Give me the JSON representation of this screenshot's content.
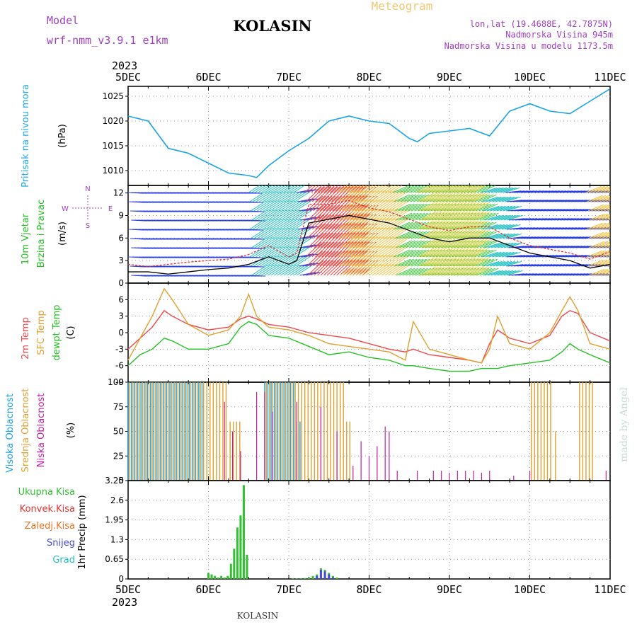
{
  "header": {
    "model_label": "Model",
    "model_name": "wrf-nmm_v3.9.1 e1km",
    "station": "KOLASIN",
    "product": "Meteogram",
    "lonlat": "lon,lat (19.4688E, 42.7875N)",
    "altitude": "Nadmorska Visina 945m",
    "model_altitude": "Nadmorska Visina u modelu 1173.5m",
    "year_top": "2023",
    "year_bottom": "2023",
    "footer_station": "KOLASIN",
    "credit": "made by Angel"
  },
  "colors": {
    "pressure": "#1aa3e8",
    "wind_speed": "#000000",
    "wind_gust": "#e03030",
    "temp_2m": "#f04848",
    "temp_sfc": "#e0a030",
    "dewpoint": "#22c022",
    "high_cloud": "#1a9fe0",
    "mid_cloud": "#e0a030",
    "low_cloud": "#c020a0",
    "rain_total": "#30c030",
    "rain_conv": "#e83030",
    "freezing": "#f07020",
    "snow": "#4848e0",
    "hail": "#20c0c0"
  },
  "chart_data": [
    {
      "type": "line",
      "panel": "pressure",
      "ylabel": [
        "Pritisak na nivou mora",
        "(hPa)"
      ],
      "unit": "hPa",
      "ylim": [
        1007,
        1027
      ],
      "yticks": [
        1010,
        1015,
        1020,
        1025
      ],
      "x_days": [
        0,
        0.25,
        0.5,
        0.75,
        1,
        1.25,
        1.5,
        1.6,
        1.75,
        2,
        2.25,
        2.5,
        2.75,
        3,
        3.25,
        3.5,
        3.6,
        3.75,
        4,
        4.25,
        4.5,
        4.75,
        5,
        5.25,
        5.5,
        5.75,
        6
      ],
      "values": [
        1021,
        1020,
        1014.5,
        1013.5,
        1011.5,
        1009.5,
        1009,
        1008.6,
        1011,
        1014,
        1016.5,
        1020,
        1021,
        1020,
        1019.5,
        1016.5,
        1015.8,
        1017.5,
        1018,
        1018.5,
        1017,
        1022,
        1023.5,
        1022,
        1021.5,
        1024,
        1026.5
      ]
    },
    {
      "type": "line",
      "panel": "wind",
      "ylabel": [
        "10m Vjetar",
        "Brzina i Pravac",
        "(m/s)"
      ],
      "unit": "m/s",
      "compass": [
        "N",
        "W",
        "E",
        "S"
      ],
      "ylim": [
        0,
        13
      ],
      "yticks": [
        0,
        3,
        6,
        9,
        12
      ],
      "x_days": [
        0,
        0.25,
        0.5,
        0.75,
        1,
        1.25,
        1.5,
        1.75,
        2,
        2.1,
        2.25,
        2.5,
        2.75,
        3,
        3.25,
        3.5,
        3.75,
        4,
        4.25,
        4.5,
        4.75,
        5,
        5.25,
        5.5,
        5.75,
        6
      ],
      "series": [
        {
          "name": "speed",
          "values": [
            1.5,
            1.5,
            1.2,
            1.5,
            1.8,
            2.0,
            2.5,
            3.5,
            2.5,
            3,
            8,
            8.5,
            9,
            8.5,
            8,
            7,
            6,
            5.5,
            6,
            6,
            5,
            4,
            3.5,
            3,
            2,
            2.5
          ]
        },
        {
          "name": "gust",
          "values": [
            2.5,
            2.2,
            2.5,
            2.8,
            3.0,
            3.2,
            3.8,
            5.0,
            3.5,
            4,
            10.5,
            10.5,
            11,
            10,
            9.5,
            8.5,
            7.5,
            7,
            7.5,
            7.5,
            6,
            5,
            4.5,
            4,
            3.2,
            4.2
          ]
        }
      ]
    },
    {
      "type": "line",
      "panel": "temperature",
      "ylabel": [
        "2m Temp",
        "SFC Temp",
        "dewpt Temp",
        "(C)"
      ],
      "unit": "C",
      "ylim": [
        -9,
        9
      ],
      "yticks": [
        -9,
        -6,
        -3,
        0,
        3,
        6
      ],
      "x_days": [
        0,
        0.15,
        0.3,
        0.45,
        0.55,
        0.75,
        1,
        1.25,
        1.4,
        1.5,
        1.6,
        1.75,
        2,
        2.25,
        2.5,
        2.75,
        3,
        3.25,
        3.45,
        3.55,
        3.75,
        4,
        4.25,
        4.4,
        4.5,
        4.6,
        4.75,
        5,
        5.25,
        5.4,
        5.5,
        5.6,
        5.75,
        6
      ],
      "series": [
        {
          "name": "2m Temp",
          "values": [
            -3,
            -1,
            1,
            4,
            3,
            1.5,
            0.5,
            1,
            2.5,
            3,
            2.5,
            1.5,
            1,
            0,
            -0.5,
            -1,
            -2,
            -3,
            -3.5,
            -3,
            -4,
            -4.5,
            -5,
            -5.5,
            -2,
            0.5,
            -1,
            -2,
            -0.5,
            3,
            4,
            3.5,
            0,
            -1.5
          ]
        },
        {
          "name": "SFC Temp",
          "values": [
            -5,
            -1,
            3,
            8,
            6,
            1.5,
            -0.5,
            0.5,
            3,
            7,
            3,
            1,
            0.5,
            -0.5,
            -2,
            -2.5,
            -3,
            -3.5,
            -5,
            2,
            -3,
            -4,
            -5,
            -5.5,
            -3,
            3,
            -2,
            -3,
            0,
            4,
            6.5,
            4,
            -2,
            -3
          ]
        },
        {
          "name": "dewpt Temp",
          "values": [
            -6,
            -4,
            -3,
            -1,
            -1.5,
            -3,
            -3,
            -2,
            1,
            2,
            1.5,
            -0.5,
            -1,
            -2.5,
            -4,
            -3.5,
            -4.5,
            -5,
            -6,
            -6,
            -6.5,
            -7,
            -7,
            -6.5,
            -6.5,
            -6.5,
            -6,
            -5.5,
            -5,
            -3.5,
            -2,
            -3,
            -4,
            -5.5
          ]
        }
      ]
    },
    {
      "type": "bar",
      "panel": "cloud",
      "ylabel": [
        "Visoka Oblacnost",
        "Srednja Oblacnost",
        "Niska Oblacnost",
        "(%)"
      ],
      "unit": "%",
      "ylim": [
        0,
        100
      ],
      "yticks": [
        0,
        25,
        50,
        75,
        100
      ],
      "series": [
        {
          "name": "Visoka Oblacnost",
          "segments": [
            [
              0.0,
              0.95,
              100
            ],
            [
              1.7,
              2.1,
              100
            ],
            [
              2.1,
              2.15,
              60
            ]
          ]
        },
        {
          "name": "Srednja Oblacnost",
          "segments": [
            [
              0.0,
              1.25,
              100
            ],
            [
              1.25,
              1.4,
              60
            ],
            [
              1.7,
              2.7,
              100
            ],
            [
              2.7,
              2.8,
              60
            ],
            [
              5.0,
              5.3,
              100
            ],
            [
              5.3,
              5.35,
              50
            ],
            [
              5.6,
              5.8,
              100
            ]
          ]
        },
        {
          "name": "Niska Oblacnost",
          "points": [
            [
              1.2,
              80
            ],
            [
              1.3,
              50
            ],
            [
              1.4,
              30
            ],
            [
              1.6,
              90
            ],
            [
              1.7,
              90
            ],
            [
              1.8,
              70
            ],
            [
              2.1,
              80
            ],
            [
              2.4,
              75
            ],
            [
              2.6,
              50
            ],
            [
              2.8,
              15
            ],
            [
              2.9,
              40
            ],
            [
              3.0,
              25
            ],
            [
              3.1,
              35
            ],
            [
              3.2,
              55
            ],
            [
              3.25,
              50
            ],
            [
              3.35,
              10
            ],
            [
              3.6,
              10
            ],
            [
              3.8,
              10
            ],
            [
              3.9,
              10
            ],
            [
              4.0,
              8
            ],
            [
              4.1,
              10
            ],
            [
              4.2,
              10
            ],
            [
              4.3,
              10
            ],
            [
              4.4,
              8
            ],
            [
              4.5,
              10
            ],
            [
              4.8,
              5
            ],
            [
              5.0,
              10
            ],
            [
              5.95,
              10
            ]
          ]
        }
      ]
    },
    {
      "type": "bar",
      "panel": "precipitation",
      "ylabel": [
        "1hr Precip (mm)"
      ],
      "legend": [
        "Ukupna Kisa",
        "Konvek.Kisa",
        "Zaledj.Kisa",
        "Snijeg",
        "Grad"
      ],
      "unit": "mm",
      "ylim": [
        0,
        3.25
      ],
      "yticks": [
        0,
        0.65,
        1.3,
        1.95,
        2.6,
        3.25
      ],
      "x_days": [
        1.0,
        1.04,
        1.08,
        1.12,
        1.16,
        1.2,
        1.24,
        1.28,
        1.32,
        1.36,
        1.4,
        1.44,
        1.48,
        2.05,
        2.1,
        2.15,
        2.2,
        2.25,
        2.3,
        2.35,
        2.4,
        2.45,
        2.5,
        2.55,
        2.6
      ],
      "series": [
        {
          "name": "Ukupna Kisa",
          "values": [
            0.2,
            0.15,
            0.1,
            0.05,
            0.1,
            0.05,
            0.1,
            0.5,
            1.0,
            1.7,
            2.1,
            3.1,
            0.8,
            0.02,
            0.02,
            0.02,
            0.03,
            0.05,
            0.1,
            0.15,
            0.35,
            0.3,
            0.2,
            0.1,
            0.05
          ]
        },
        {
          "name": "Snijeg",
          "values": [
            0,
            0,
            0,
            0,
            0,
            0,
            0,
            0,
            0,
            0,
            0,
            0,
            0,
            0,
            0,
            0,
            0,
            0,
            0,
            0.1,
            0.3,
            0.25,
            0.15,
            0.05,
            0
          ]
        }
      ]
    }
  ],
  "axis": {
    "day_labels": [
      "5DEC",
      "6DEC",
      "7DEC",
      "8DEC",
      "9DEC",
      "10DEC",
      "11DEC"
    ]
  }
}
